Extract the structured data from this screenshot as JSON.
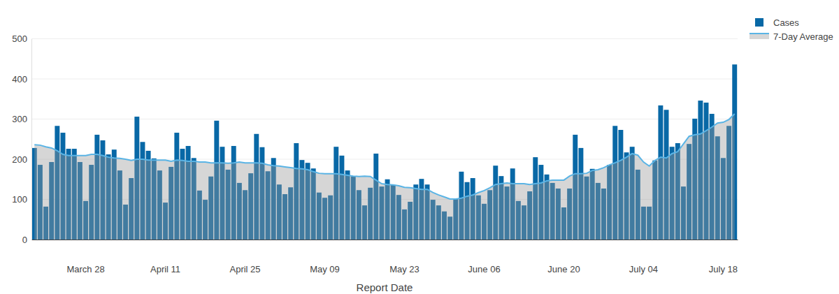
{
  "chart_data": {
    "type": "bar",
    "x_label": "Report Date",
    "categories": [
      null,
      null,
      null,
      null,
      null,
      null,
      null,
      null,
      null,
      "March 28",
      null,
      null,
      null,
      null,
      null,
      null,
      null,
      null,
      null,
      null,
      null,
      null,
      null,
      "April 11",
      null,
      null,
      null,
      null,
      null,
      null,
      null,
      null,
      null,
      null,
      null,
      null,
      null,
      "April 25",
      null,
      null,
      null,
      null,
      null,
      null,
      null,
      null,
      null,
      null,
      null,
      null,
      null,
      "May 09",
      null,
      null,
      null,
      null,
      null,
      null,
      null,
      null,
      null,
      null,
      null,
      null,
      null,
      "May 23",
      null,
      null,
      null,
      null,
      null,
      null,
      null,
      null,
      null,
      null,
      null,
      null,
      null,
      "June 06",
      null,
      null,
      null,
      null,
      null,
      null,
      null,
      null,
      null,
      null,
      null,
      null,
      null,
      "June 20",
      null,
      null,
      null,
      null,
      null,
      null,
      null,
      null,
      null,
      null,
      null,
      null,
      null,
      "July 04",
      null,
      null,
      null,
      null,
      null,
      null,
      null,
      null,
      null,
      null,
      null,
      null,
      null,
      "July 18",
      null,
      null
    ],
    "series": [
      {
        "name": "Cases",
        "type": "bar",
        "color": "#0868a6",
        "values": [
          228,
          186,
          82,
          193,
          283,
          266,
          226,
          226,
          193,
          96,
          186,
          261,
          247,
          212,
          224,
          172,
          87,
          153,
          306,
          243,
          221,
          202,
          172,
          92,
          181,
          266,
          226,
          233,
          203,
          122,
          99,
          157,
          296,
          231,
          174,
          233,
          141,
          123,
          165,
          263,
          230,
          170,
          203,
          137,
          113,
          130,
          240,
          198,
          191,
          177,
          117,
          104,
          110,
          231,
          209,
          172,
          157,
          123,
          85,
          129,
          214,
          132,
          150,
          136,
          111,
          75,
          94,
          137,
          151,
          137,
          99,
          85,
          70,
          57,
          101,
          169,
          143,
          153,
          110,
          89,
          123,
          184,
          158,
          132,
          177,
          96,
          85,
          120,
          205,
          186,
          162,
          141,
          127,
          80,
          127,
          261,
          228,
          157,
          176,
          141,
          127,
          186,
          283,
          273,
          217,
          231,
          174,
          82,
          82,
          197,
          334,
          323,
          231,
          240,
          132,
          238,
          301,
          346,
          341,
          313,
          257,
          203,
          283,
          436
        ]
      },
      {
        "name": "7-Day Average",
        "type": "area",
        "color": "#5ab4e5",
        "values": [
          236,
          235,
          231,
          228,
          221,
          212,
          209,
          209,
          209,
          209,
          212,
          212,
          209,
          205,
          203,
          202,
          200,
          197,
          200,
          200,
          198,
          198,
          198,
          198,
          195,
          198,
          197,
          195,
          195,
          193,
          193,
          191,
          191,
          191,
          190,
          191,
          193,
          191,
          191,
          191,
          190,
          186,
          184,
          183,
          181,
          179,
          177,
          176,
          174,
          169,
          165,
          164,
          164,
          164,
          162,
          160,
          158,
          157,
          158,
          157,
          148,
          139,
          137,
          136,
          134,
          130,
          129,
          127,
          125,
          125,
          117,
          111,
          106,
          101,
          101,
          103,
          108,
          111,
          117,
          122,
          129,
          137,
          139,
          141,
          139,
          139,
          139,
          137,
          139,
          141,
          146,
          148,
          148,
          148,
          158,
          164,
          164,
          165,
          172,
          174,
          179,
          186,
          191,
          197,
          205,
          214,
          210,
          193,
          183,
          197,
          205,
          203,
          214,
          219,
          238,
          257,
          261,
          263,
          271,
          280,
          290,
          292,
          299,
          313
        ]
      }
    ],
    "ylim": [
      0,
      500
    ],
    "yticks": [
      0,
      100,
      200,
      300,
      400,
      500
    ],
    "grid": true,
    "legend": "top-right"
  }
}
